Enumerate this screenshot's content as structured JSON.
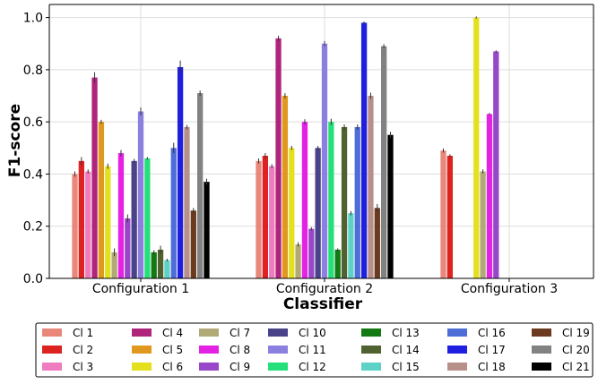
{
  "chart_data": {
    "type": "bar",
    "title": "",
    "xlabel": "Classifier",
    "ylabel": "F1-score",
    "ylim": [
      0,
      1.05
    ],
    "yticks": [
      "0.0",
      "0.2",
      "0.4",
      "0.6",
      "0.8",
      "1.0"
    ],
    "ytick_values": [
      0.0,
      0.2,
      0.4,
      0.6,
      0.8,
      1.0
    ],
    "grid": true,
    "legend_position": "bottom",
    "categories": [
      "Configuration 1",
      "Configuration 2",
      "Configuration 3"
    ],
    "series": [
      {
        "name": "Cl 1",
        "color": "#e8877a",
        "values": [
          0.4,
          0.45,
          0.49
        ],
        "errors": [
          0.01,
          0.01,
          0.008
        ]
      },
      {
        "name": "Cl 2",
        "color": "#dd2222",
        "values": [
          0.45,
          0.47,
          0.47
        ],
        "errors": [
          0.015,
          0.01,
          0.006
        ]
      },
      {
        "name": "Cl 3",
        "color": "#f07cc0",
        "values": [
          0.41,
          0.43,
          null
        ],
        "errors": [
          0.008,
          0.008,
          0
        ]
      },
      {
        "name": "Cl 4",
        "color": "#b0257c",
        "values": [
          0.77,
          0.92,
          null
        ],
        "errors": [
          0.02,
          0.01,
          0
        ]
      },
      {
        "name": "Cl 5",
        "color": "#e0981e",
        "values": [
          0.6,
          0.7,
          null
        ],
        "errors": [
          0.008,
          0.01,
          0
        ]
      },
      {
        "name": "Cl 6",
        "color": "#e4e01e",
        "values": [
          0.43,
          0.5,
          1.0
        ],
        "errors": [
          0.01,
          0.008,
          0.004
        ]
      },
      {
        "name": "Cl 7",
        "color": "#b1aa76",
        "values": [
          0.1,
          0.13,
          0.41
        ],
        "errors": [
          0.015,
          0.008,
          0.008
        ]
      },
      {
        "name": "Cl 8",
        "color": "#e422e4",
        "values": [
          0.48,
          0.6,
          0.63
        ],
        "errors": [
          0.012,
          0.01,
          0.004
        ]
      },
      {
        "name": "Cl 9",
        "color": "#9847c8",
        "values": [
          0.23,
          0.19,
          0.87
        ],
        "errors": [
          0.015,
          0.006,
          0.004
        ]
      },
      {
        "name": "Cl 10",
        "color": "#4a4389",
        "values": [
          0.45,
          0.5,
          null
        ],
        "errors": [
          0.008,
          0.008,
          0
        ]
      },
      {
        "name": "Cl 11",
        "color": "#8b7fe0",
        "values": [
          0.64,
          0.9,
          null
        ],
        "errors": [
          0.015,
          0.01,
          0
        ]
      },
      {
        "name": "Cl 12",
        "color": "#25e07a",
        "values": [
          0.46,
          0.6,
          null
        ],
        "errors": [
          0.005,
          0.012,
          0
        ]
      },
      {
        "name": "Cl 13",
        "color": "#137a13",
        "values": [
          0.1,
          0.11,
          null
        ],
        "errors": [
          0.008,
          0.005,
          0
        ]
      },
      {
        "name": "Cl 14",
        "color": "#4f6230",
        "values": [
          0.11,
          0.58,
          null
        ],
        "errors": [
          0.015,
          0.01,
          0
        ]
      },
      {
        "name": "Cl 15",
        "color": "#5fd2c8",
        "values": [
          0.07,
          0.25,
          null
        ],
        "errors": [
          0.005,
          0.008,
          0
        ]
      },
      {
        "name": "Cl 16",
        "color": "#4f6dd6",
        "values": [
          0.5,
          0.58,
          null
        ],
        "errors": [
          0.02,
          0.01,
          0
        ]
      },
      {
        "name": "Cl 17",
        "color": "#1f1fe0",
        "values": [
          0.81,
          0.98,
          null
        ],
        "errors": [
          0.025,
          0.005,
          0
        ]
      },
      {
        "name": "Cl 18",
        "color": "#b8908a",
        "values": [
          0.58,
          0.7,
          null
        ],
        "errors": [
          0.008,
          0.012,
          0
        ]
      },
      {
        "name": "Cl 19",
        "color": "#6c3a1e",
        "values": [
          0.26,
          0.27,
          null
        ],
        "errors": [
          0.01,
          0.015,
          0
        ]
      },
      {
        "name": "Cl 20",
        "color": "#828282",
        "values": [
          0.71,
          0.89,
          null
        ],
        "errors": [
          0.01,
          0.008,
          0
        ]
      },
      {
        "name": "Cl 21",
        "color": "#000000",
        "values": [
          0.37,
          0.55,
          null
        ],
        "errors": [
          0.012,
          0.012,
          0
        ]
      }
    ]
  }
}
